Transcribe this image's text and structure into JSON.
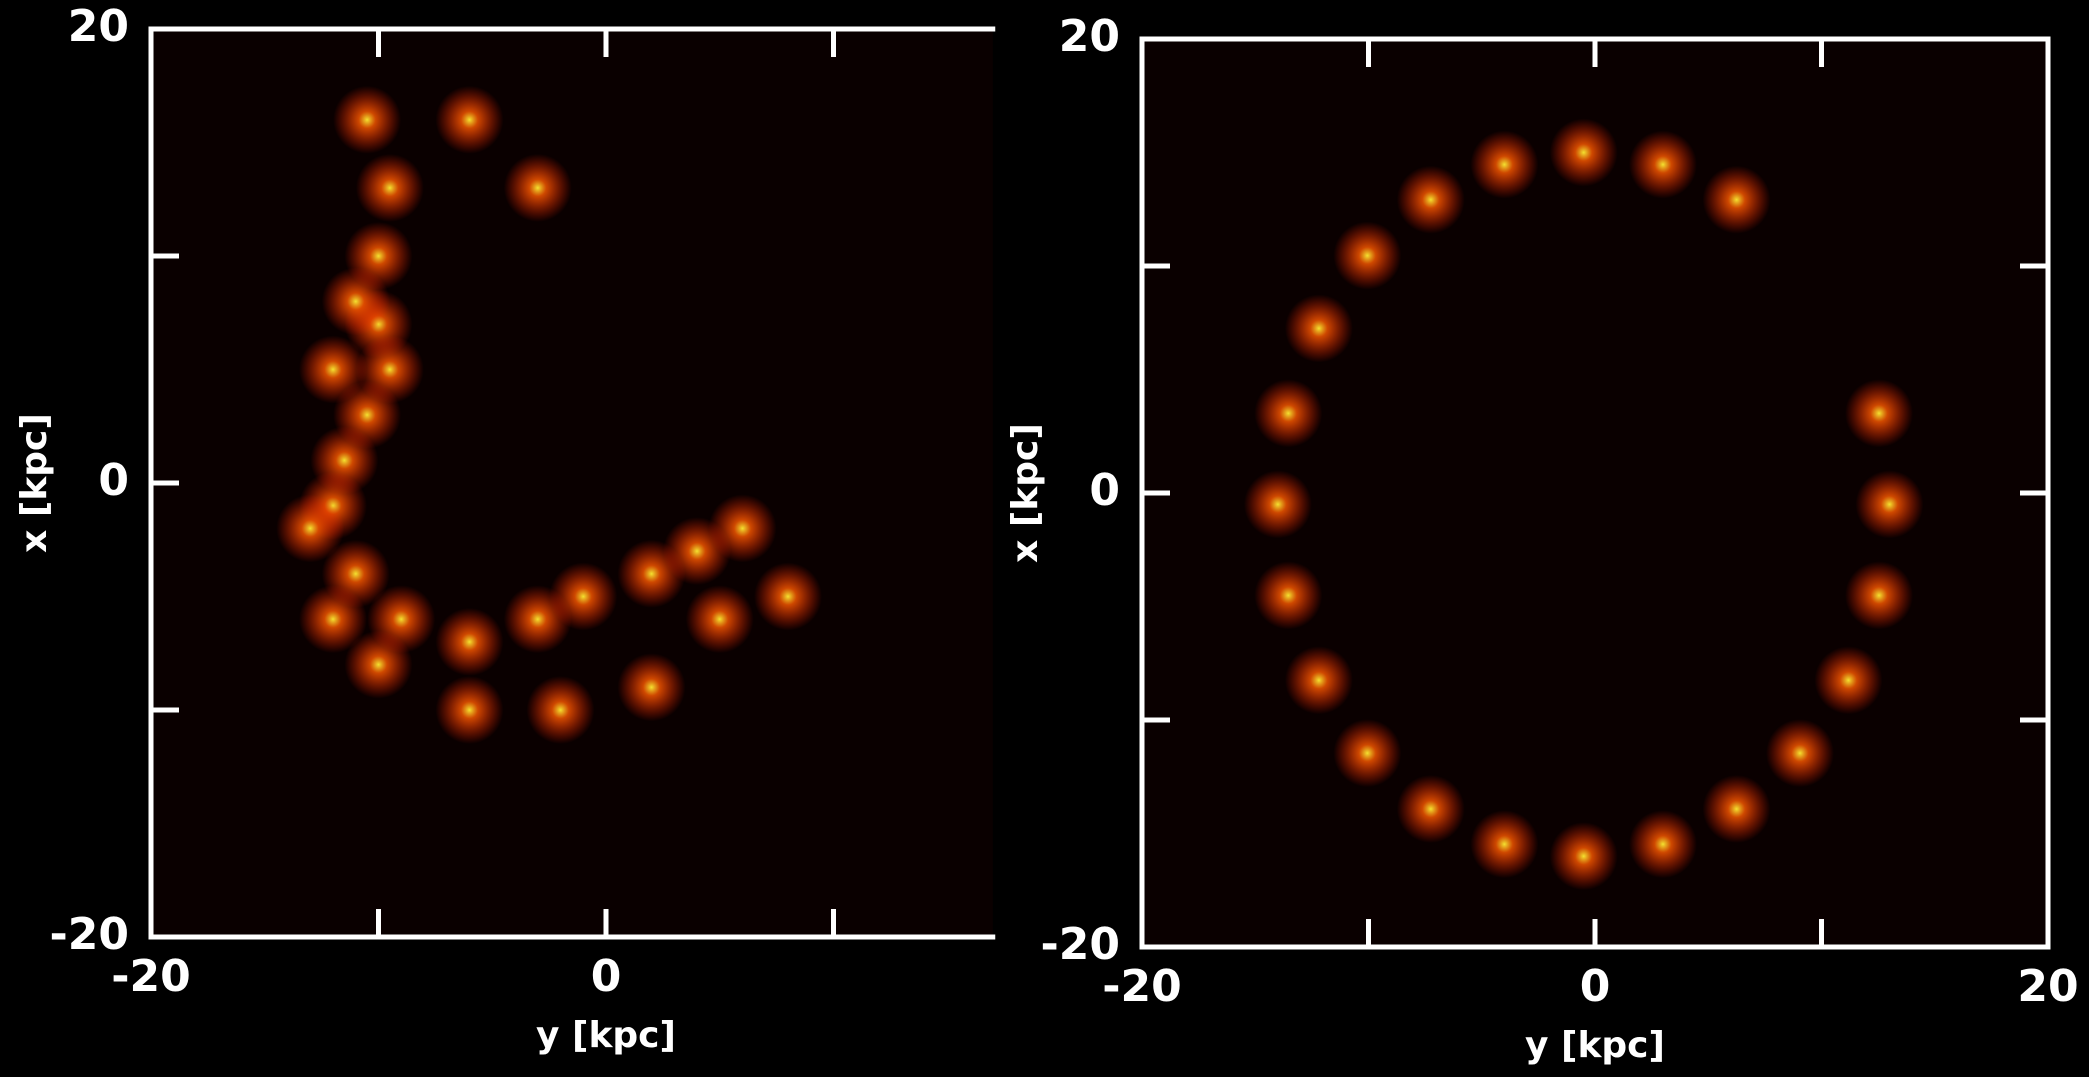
{
  "chart_data": [
    {
      "type": "scatter",
      "xlabel": "y [kpc]",
      "ylabel": "x [kpc]",
      "color": "#ff2a00",
      "x": [
        -10.5,
        -9.5,
        -10,
        -10,
        -9.5,
        -10.5,
        -11.5,
        -12,
        -11,
        -9,
        -6,
        -3,
        -1,
        2,
        4,
        6,
        -3,
        -13,
        -12,
        -10,
        -6,
        -2,
        2,
        5,
        8,
        -12,
        -11,
        -6
      ],
      "values": [
        16,
        13,
        10,
        7,
        5,
        3,
        1,
        -1,
        -4,
        -6,
        -7,
        -6,
        -5,
        -4,
        -3,
        -2,
        13,
        -2,
        -6,
        -8,
        -10,
        -10,
        -9,
        -6,
        -5,
        5,
        8,
        16
      ],
      "xlim": [
        -20,
        17
      ],
      "ylim": [
        -20,
        20
      ],
      "xticks": [
        -20,
        0
      ],
      "yticks": [
        -20,
        0,
        20
      ],
      "minor_xticks": [
        -10,
        10
      ],
      "minor_yticks": [
        -10,
        10
      ]
    },
    {
      "type": "scatter",
      "xlabel": "y [kpc]",
      "ylabel": "x [kpc]",
      "color": "#ff2a00",
      "x": [
        13,
        12.54,
        6.25,
        3.0,
        -0.5,
        -4.0,
        -7.25,
        -10.05,
        -12.19,
        -13.54,
        -14,
        -13.54,
        -12.19,
        -10.05,
        -7.25,
        -4.0,
        -0.5,
        3.0,
        6.25,
        9.05,
        11.19,
        12.54
      ],
      "values": [
        -0.5,
        3.51,
        12.92,
        14.47,
        15,
        14.47,
        12.92,
        10.46,
        7.25,
        3.51,
        -0.5,
        -4.51,
        -8.25,
        -11.46,
        -13.92,
        -15.47,
        -16,
        -15.47,
        -13.92,
        -11.46,
        -8.25,
        -4.51
      ],
      "xlim": [
        -20,
        20
      ],
      "ylim": [
        -20,
        20
      ],
      "xticks": [
        -20,
        0,
        20
      ],
      "yticks": [
        -20,
        0,
        20
      ],
      "minor_xticks": [
        -10,
        10
      ],
      "minor_yticks": [
        -10,
        10
      ]
    }
  ]
}
